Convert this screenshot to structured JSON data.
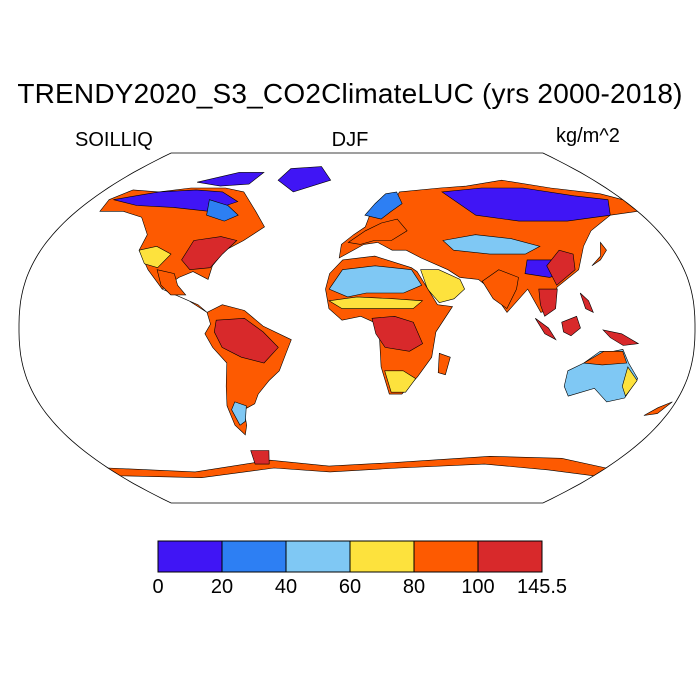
{
  "title": "TRENDY2020_S3_CO2ClimateLUC (yrs 2000-2018)",
  "labels": {
    "variable": "SOILLIQ",
    "season": "DJF",
    "units": "kg/m^2"
  },
  "colorbar": {
    "colors": [
      "#4015f5",
      "#2d7ff3",
      "#7fc8f4",
      "#fde23d",
      "#fd5a01",
      "#d8292b"
    ],
    "ticks": [
      "0",
      "20",
      "40",
      "60",
      "80",
      "100",
      "145.5"
    ]
  },
  "map": {
    "projection": "robinson",
    "outline_color": "#000000",
    "ocean_color": "#ffffff"
  }
}
